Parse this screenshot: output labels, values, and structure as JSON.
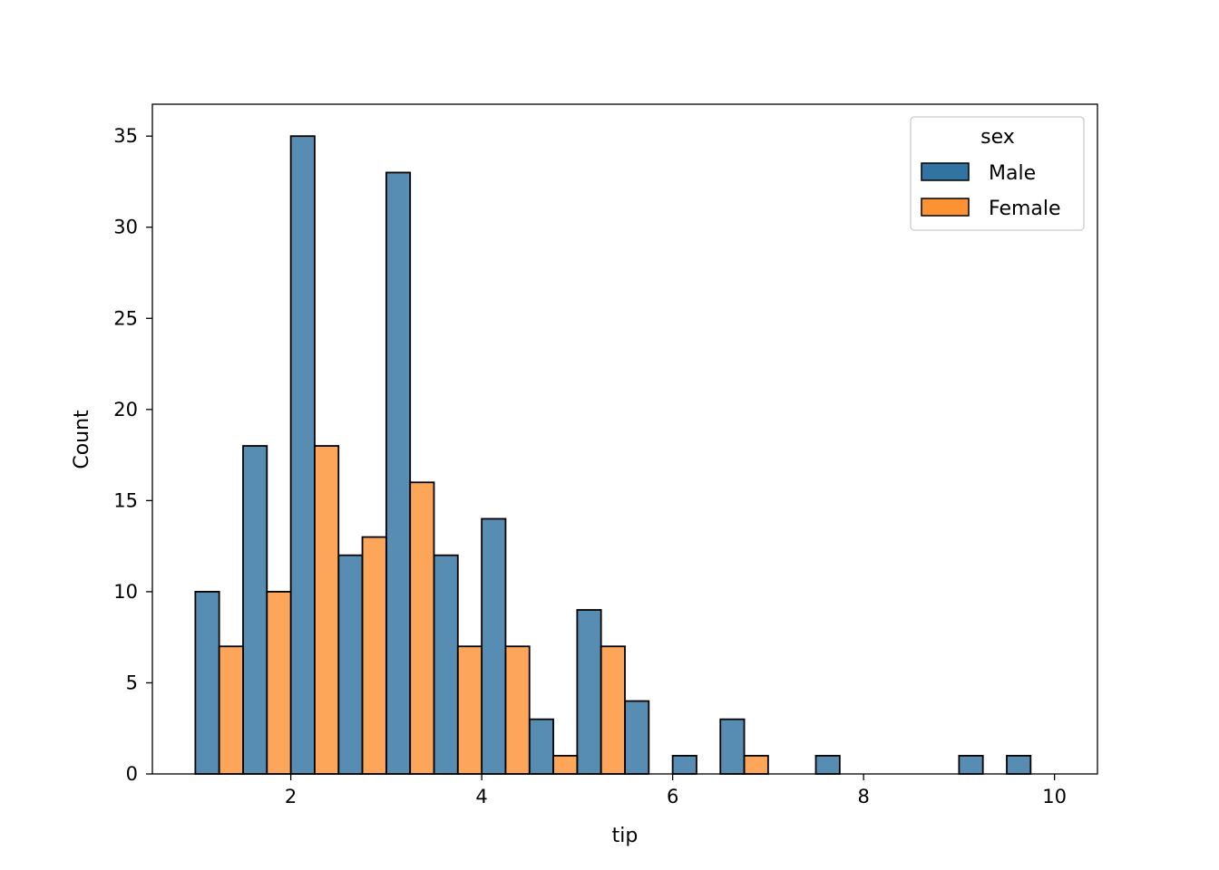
{
  "chart_data": {
    "type": "bar",
    "subtype": "histogram (dodged)",
    "xlabel": "tip",
    "ylabel": "Count",
    "xlim": [
      0.55,
      10.45
    ],
    "ylim": [
      0,
      36.75
    ],
    "bin_start": 1.0,
    "bin_width": 0.5,
    "x_ticks": [
      2,
      4,
      6,
      8,
      10
    ],
    "y_ticks": [
      0,
      5,
      10,
      15,
      20,
      25,
      30,
      35
    ],
    "grid": false,
    "legend": {
      "title": "sex",
      "placement": "top-right"
    },
    "series": [
      {
        "name": "Male",
        "color": "#3274a1",
        "values": [
          10,
          18,
          35,
          12,
          33,
          12,
          14,
          3,
          9,
          4,
          1,
          3,
          0,
          1,
          0,
          0,
          1,
          1
        ]
      },
      {
        "name": "Female",
        "color": "#fd9234",
        "values": [
          7,
          10,
          18,
          13,
          16,
          7,
          7,
          1,
          7,
          0,
          0,
          1,
          0,
          0,
          0,
          0,
          0,
          0
        ]
      }
    ]
  }
}
